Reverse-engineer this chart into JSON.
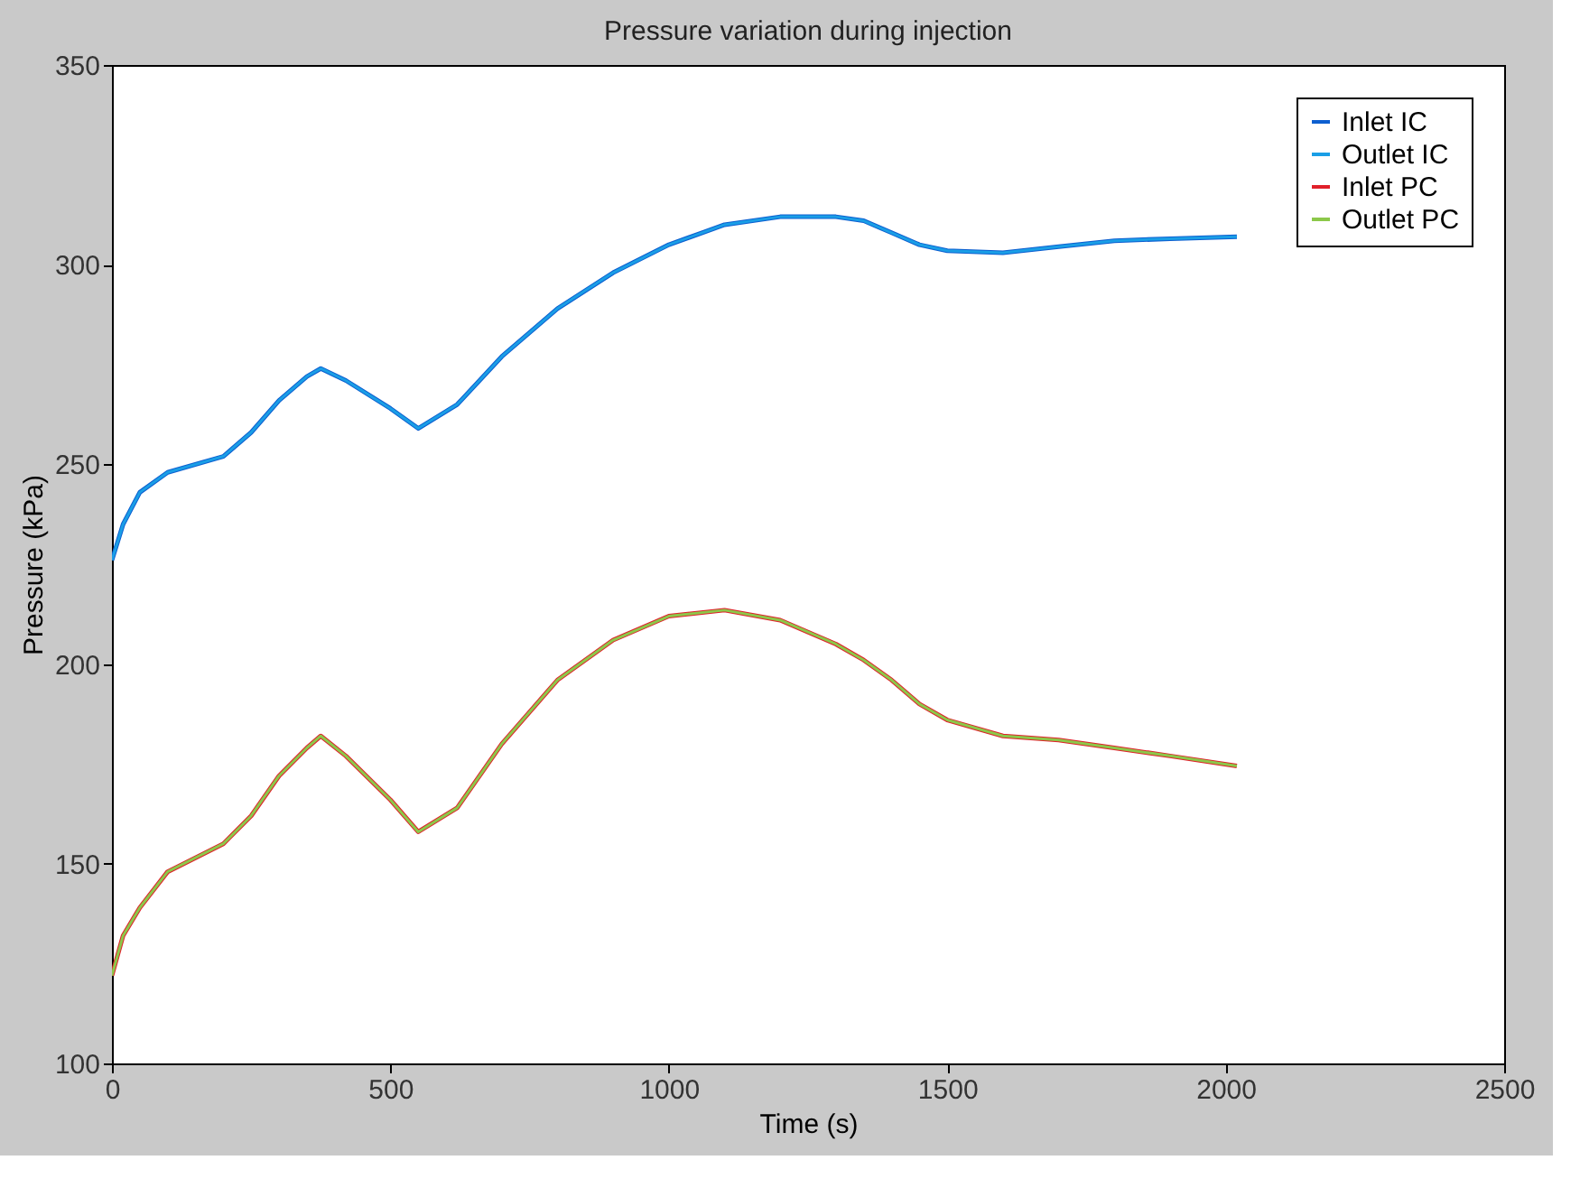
{
  "chart_data": {
    "type": "line",
    "title": "Pressure variation during injection",
    "xlabel": "Time (s)",
    "ylabel": "Pressure (kPa)",
    "x": [
      0,
      20,
      50,
      100,
      200,
      250,
      300,
      350,
      375,
      420,
      500,
      550,
      620,
      700,
      800,
      900,
      1000,
      1100,
      1200,
      1300,
      1350,
      1400,
      1450,
      1500,
      1600,
      1700,
      1800,
      1900,
      2020
    ],
    "series": [
      {
        "name": "Inlet IC",
        "color": "#0d5fd0",
        "values": [
          226,
          235,
          243,
          248,
          252,
          258,
          266,
          272,
          274,
          271,
          264,
          259,
          265,
          277,
          289,
          298,
          305,
          310,
          312,
          312,
          311,
          308,
          305,
          303.5,
          303,
          304.5,
          306,
          306.5,
          307
        ]
      },
      {
        "name": "Outlet IC",
        "color": "#1a9ee6",
        "values": [
          226,
          235,
          243,
          248,
          252,
          258,
          266,
          272,
          274,
          271,
          264,
          259,
          265,
          277,
          289,
          298,
          305,
          310,
          312,
          312,
          311,
          308,
          305,
          303.5,
          303,
          304.5,
          306,
          306.5,
          307
        ]
      },
      {
        "name": "Inlet PC",
        "color": "#e0202a",
        "values": [
          122,
          132,
          139,
          148,
          155,
          162,
          172,
          179,
          182,
          177,
          166,
          158,
          164,
          180,
          196,
          206,
          212,
          213.5,
          211,
          205,
          201,
          196,
          190,
          186,
          182,
          181,
          179,
          177,
          174.5
        ]
      },
      {
        "name": "Outlet PC",
        "color": "#8cc84a",
        "values": [
          122,
          132,
          139,
          148,
          155,
          162,
          172,
          179,
          182,
          177,
          166,
          158,
          164,
          180,
          196,
          206,
          212,
          213.5,
          211,
          205,
          201,
          196,
          190,
          186,
          182,
          181,
          179,
          177,
          174.5
        ]
      }
    ],
    "xlim": [
      0,
      2500
    ],
    "xticks": [
      0,
      500,
      1000,
      1500,
      2000,
      2500
    ],
    "ylim": [
      100,
      350
    ],
    "yticks": [
      100,
      150,
      200,
      250,
      300,
      350
    ],
    "grid": false,
    "legend": "top right",
    "marker": "none",
    "line_style": "solid"
  }
}
